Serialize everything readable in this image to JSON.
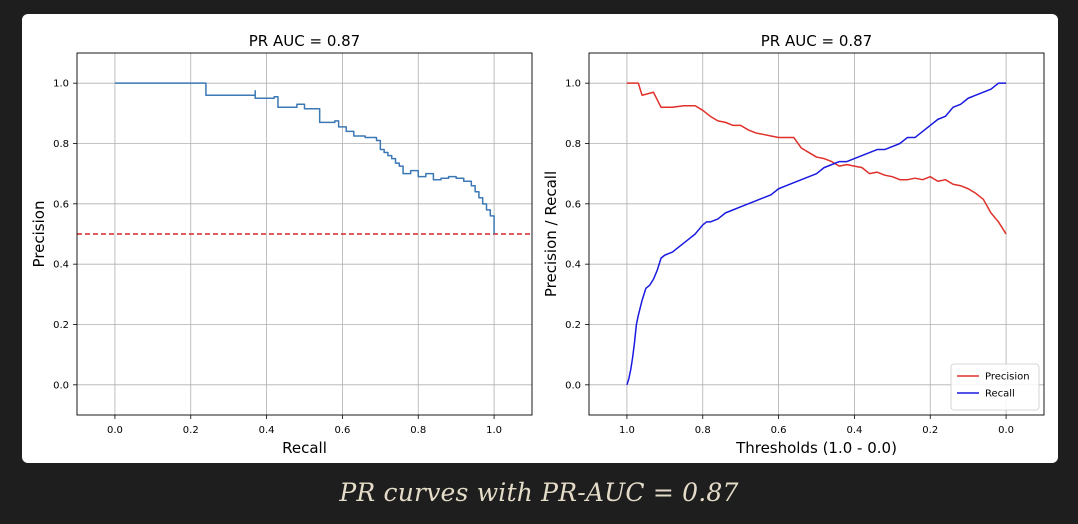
{
  "caption": "PR curves with PR-AUC = 0.87",
  "chart_data": [
    {
      "type": "line",
      "title": "PR AUC = 0.87",
      "xlabel": "Recall",
      "ylabel": "Precision",
      "xlim": [
        -0.1,
        1.1
      ],
      "ylim": [
        -0.1,
        1.1
      ],
      "xticks": [
        "0.0",
        "0.2",
        "0.4",
        "0.6",
        "0.8",
        "1.0"
      ],
      "yticks": [
        "0.0",
        "0.2",
        "0.4",
        "0.6",
        "0.8",
        "1.0"
      ],
      "grid": true,
      "step": true,
      "series": [
        {
          "color": "#3b78b4",
          "x": [
            0.0,
            0.24,
            0.24,
            0.37,
            0.37,
            0.42,
            0.43,
            0.48,
            0.5,
            0.54,
            0.54,
            0.58,
            0.59,
            0.61,
            0.63,
            0.66,
            0.69,
            0.7,
            0.71,
            0.72,
            0.73,
            0.74,
            0.75,
            0.76,
            0.78,
            0.8,
            0.82,
            0.84,
            0.86,
            0.88,
            0.9,
            0.92,
            0.94,
            0.95,
            0.96,
            0.97,
            0.98,
            0.99,
            1.0,
            1.0
          ],
          "y": [
            1.0,
            1.0,
            0.96,
            0.975,
            0.95,
            0.955,
            0.92,
            0.93,
            0.915,
            0.91,
            0.87,
            0.875,
            0.855,
            0.84,
            0.825,
            0.82,
            0.81,
            0.78,
            0.77,
            0.76,
            0.75,
            0.735,
            0.725,
            0.7,
            0.71,
            0.69,
            0.7,
            0.68,
            0.685,
            0.69,
            0.685,
            0.675,
            0.66,
            0.64,
            0.62,
            0.6,
            0.58,
            0.56,
            0.55,
            0.5
          ]
        }
      ],
      "baseline": {
        "y": 0.5,
        "color": "#d62728",
        "style": "dashed"
      }
    },
    {
      "type": "line",
      "title": "PR AUC = 0.87",
      "xlabel": "Thresholds (1.0 - 0.0)",
      "ylabel": "Precision / Recall",
      "xlim": [
        1.1,
        -0.1
      ],
      "ylim": [
        -0.1,
        1.1
      ],
      "xticks": [
        "1.0",
        "0.8",
        "0.6",
        "0.4",
        "0.2",
        "0.0"
      ],
      "yticks": [
        "0.0",
        "0.2",
        "0.4",
        "0.6",
        "0.8",
        "1.0"
      ],
      "grid": true,
      "legend": "lower-right",
      "series": [
        {
          "name": "Precision",
          "color": "#e0302a",
          "x": [
            1.0,
            0.97,
            0.96,
            0.93,
            0.91,
            0.88,
            0.85,
            0.82,
            0.8,
            0.78,
            0.76,
            0.74,
            0.72,
            0.7,
            0.68,
            0.66,
            0.64,
            0.62,
            0.6,
            0.58,
            0.56,
            0.54,
            0.52,
            0.5,
            0.48,
            0.46,
            0.44,
            0.42,
            0.4,
            0.38,
            0.36,
            0.34,
            0.32,
            0.3,
            0.28,
            0.26,
            0.24,
            0.22,
            0.2,
            0.18,
            0.16,
            0.14,
            0.12,
            0.1,
            0.08,
            0.06,
            0.04,
            0.02,
            0.0
          ],
          "y": [
            1.0,
            1.0,
            0.96,
            0.97,
            0.92,
            0.92,
            0.925,
            0.925,
            0.91,
            0.89,
            0.875,
            0.87,
            0.86,
            0.86,
            0.845,
            0.835,
            0.83,
            0.825,
            0.82,
            0.82,
            0.82,
            0.785,
            0.77,
            0.755,
            0.75,
            0.74,
            0.725,
            0.73,
            0.725,
            0.72,
            0.7,
            0.705,
            0.695,
            0.69,
            0.68,
            0.68,
            0.685,
            0.68,
            0.69,
            0.675,
            0.68,
            0.665,
            0.66,
            0.65,
            0.635,
            0.615,
            0.57,
            0.54,
            0.5
          ]
        },
        {
          "name": "Recall",
          "color": "#1a1ae0",
          "x": [
            1.0,
            0.995,
            0.99,
            0.985,
            0.98,
            0.975,
            0.97,
            0.96,
            0.95,
            0.94,
            0.93,
            0.92,
            0.91,
            0.9,
            0.88,
            0.86,
            0.84,
            0.82,
            0.8,
            0.79,
            0.78,
            0.76,
            0.74,
            0.72,
            0.7,
            0.68,
            0.66,
            0.64,
            0.62,
            0.6,
            0.58,
            0.56,
            0.54,
            0.52,
            0.5,
            0.48,
            0.46,
            0.44,
            0.42,
            0.4,
            0.38,
            0.36,
            0.34,
            0.32,
            0.3,
            0.28,
            0.26,
            0.24,
            0.22,
            0.2,
            0.18,
            0.16,
            0.14,
            0.12,
            0.1,
            0.08,
            0.06,
            0.04,
            0.02,
            0.0
          ],
          "y": [
            0.0,
            0.02,
            0.05,
            0.09,
            0.14,
            0.2,
            0.23,
            0.28,
            0.32,
            0.33,
            0.35,
            0.38,
            0.42,
            0.43,
            0.44,
            0.46,
            0.48,
            0.5,
            0.53,
            0.54,
            0.54,
            0.55,
            0.57,
            0.58,
            0.59,
            0.6,
            0.61,
            0.62,
            0.63,
            0.65,
            0.66,
            0.67,
            0.68,
            0.69,
            0.7,
            0.72,
            0.73,
            0.74,
            0.74,
            0.75,
            0.76,
            0.77,
            0.78,
            0.78,
            0.79,
            0.8,
            0.82,
            0.82,
            0.84,
            0.86,
            0.88,
            0.89,
            0.92,
            0.93,
            0.95,
            0.96,
            0.97,
            0.98,
            1.0,
            1.0
          ]
        }
      ]
    }
  ]
}
